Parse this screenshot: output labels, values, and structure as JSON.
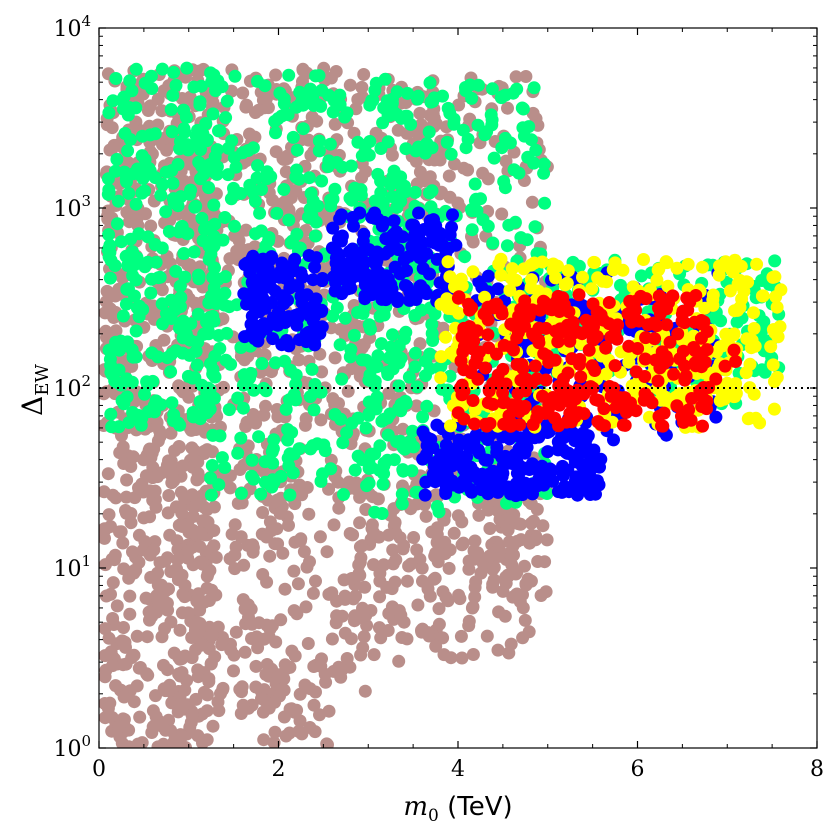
{
  "chart_data": {
    "type": "scatter",
    "title": "",
    "xlabel": {
      "main": "m",
      "sub": "0",
      "unit": " (TeV)"
    },
    "ylabel": {
      "main": "Δ",
      "sub": "EW"
    },
    "x_scale": "linear",
    "y_scale": "log",
    "xlim": [
      0,
      8
    ],
    "ylim": [
      1,
      10000
    ],
    "x_ticks": [
      0,
      2,
      4,
      6,
      8
    ],
    "x_tick_labels": [
      "0",
      "2",
      "4",
      "6",
      "8"
    ],
    "y_ticks": [
      1,
      10,
      100,
      1000,
      10000
    ],
    "y_tick_labels": [
      {
        "base": "10",
        "exp": "0"
      },
      {
        "base": "10",
        "exp": "1"
      },
      {
        "base": "10",
        "exp": "2"
      },
      {
        "base": "10",
        "exp": "3"
      },
      {
        "base": "10",
        "exp": "4"
      }
    ],
    "grid": false,
    "reference_line": {
      "y": 100,
      "style": "dotted",
      "color": "#000000"
    },
    "series": [
      {
        "color": "#b98e8a",
        "regions": [
          {
            "x": [
              0.05,
              1.3
            ],
            "y": [
              1,
              6000
            ],
            "n": 700
          },
          {
            "x": [
              0.9,
              2.2
            ],
            "y": [
              1.5,
              6000
            ],
            "n": 300
          },
          {
            "x": [
              1.5,
              3.0
            ],
            "y": [
              2,
              6000
            ],
            "n": 250
          },
          {
            "x": [
              2.2,
              3.8
            ],
            "y": [
              4,
              5500
            ],
            "n": 220
          },
          {
            "x": [
              3.2,
              5.0
            ],
            "y": [
              10,
              5500
            ],
            "n": 260
          },
          {
            "x": [
              2.8,
              4.8
            ],
            "y": [
              3,
              20
            ],
            "n": 100
          },
          {
            "x": [
              1.8,
              2.6
            ],
            "y": [
              1.0,
              3
            ],
            "n": 40
          },
          {
            "x": [
              4.3,
              5.0
            ],
            "y": [
              6,
              30
            ],
            "n": 60
          }
        ]
      },
      {
        "color": "#00ff80",
        "regions": [
          {
            "x": [
              0.1,
              1.3
            ],
            "y": [
              60,
              6000
            ],
            "n": 260
          },
          {
            "x": [
              1.2,
              3.5
            ],
            "y": [
              25,
              5500
            ],
            "n": 380
          },
          {
            "x": [
              3.0,
              5.0
            ],
            "y": [
              20,
              5000
            ],
            "n": 320
          },
          {
            "x": [
              4.8,
              7.6
            ],
            "y": [
              120,
              520
            ],
            "n": 160
          },
          {
            "x": [
              6.0,
              7.2
            ],
            "y": [
              80,
              200
            ],
            "n": 60
          }
        ]
      },
      {
        "color": "#0000ff",
        "regions": [
          {
            "x": [
              1.6,
              2.5
            ],
            "y": [
              170,
              550
            ],
            "n": 120
          },
          {
            "x": [
              2.6,
              4.0
            ],
            "y": [
              300,
              950
            ],
            "n": 170
          },
          {
            "x": [
              3.6,
              5.6
            ],
            "y": [
              25,
              65
            ],
            "n": 230
          },
          {
            "x": [
              4.2,
              6.9
            ],
            "y": [
              50,
              450
            ],
            "n": 160
          }
        ]
      },
      {
        "color": "#ffff00",
        "regions": [
          {
            "x": [
              3.8,
              7.6
            ],
            "y": [
              60,
              520
            ],
            "n": 320
          },
          {
            "x": [
              6.0,
              7.1
            ],
            "y": [
              85,
              200
            ],
            "n": 80
          }
        ]
      },
      {
        "color": "#ff0000",
        "regions": [
          {
            "x": [
              4.0,
              6.8
            ],
            "y": [
              60,
              330
            ],
            "n": 300
          },
          {
            "x": [
              6.5,
              7.1
            ],
            "y": [
              100,
              170
            ],
            "n": 8
          }
        ]
      }
    ]
  }
}
